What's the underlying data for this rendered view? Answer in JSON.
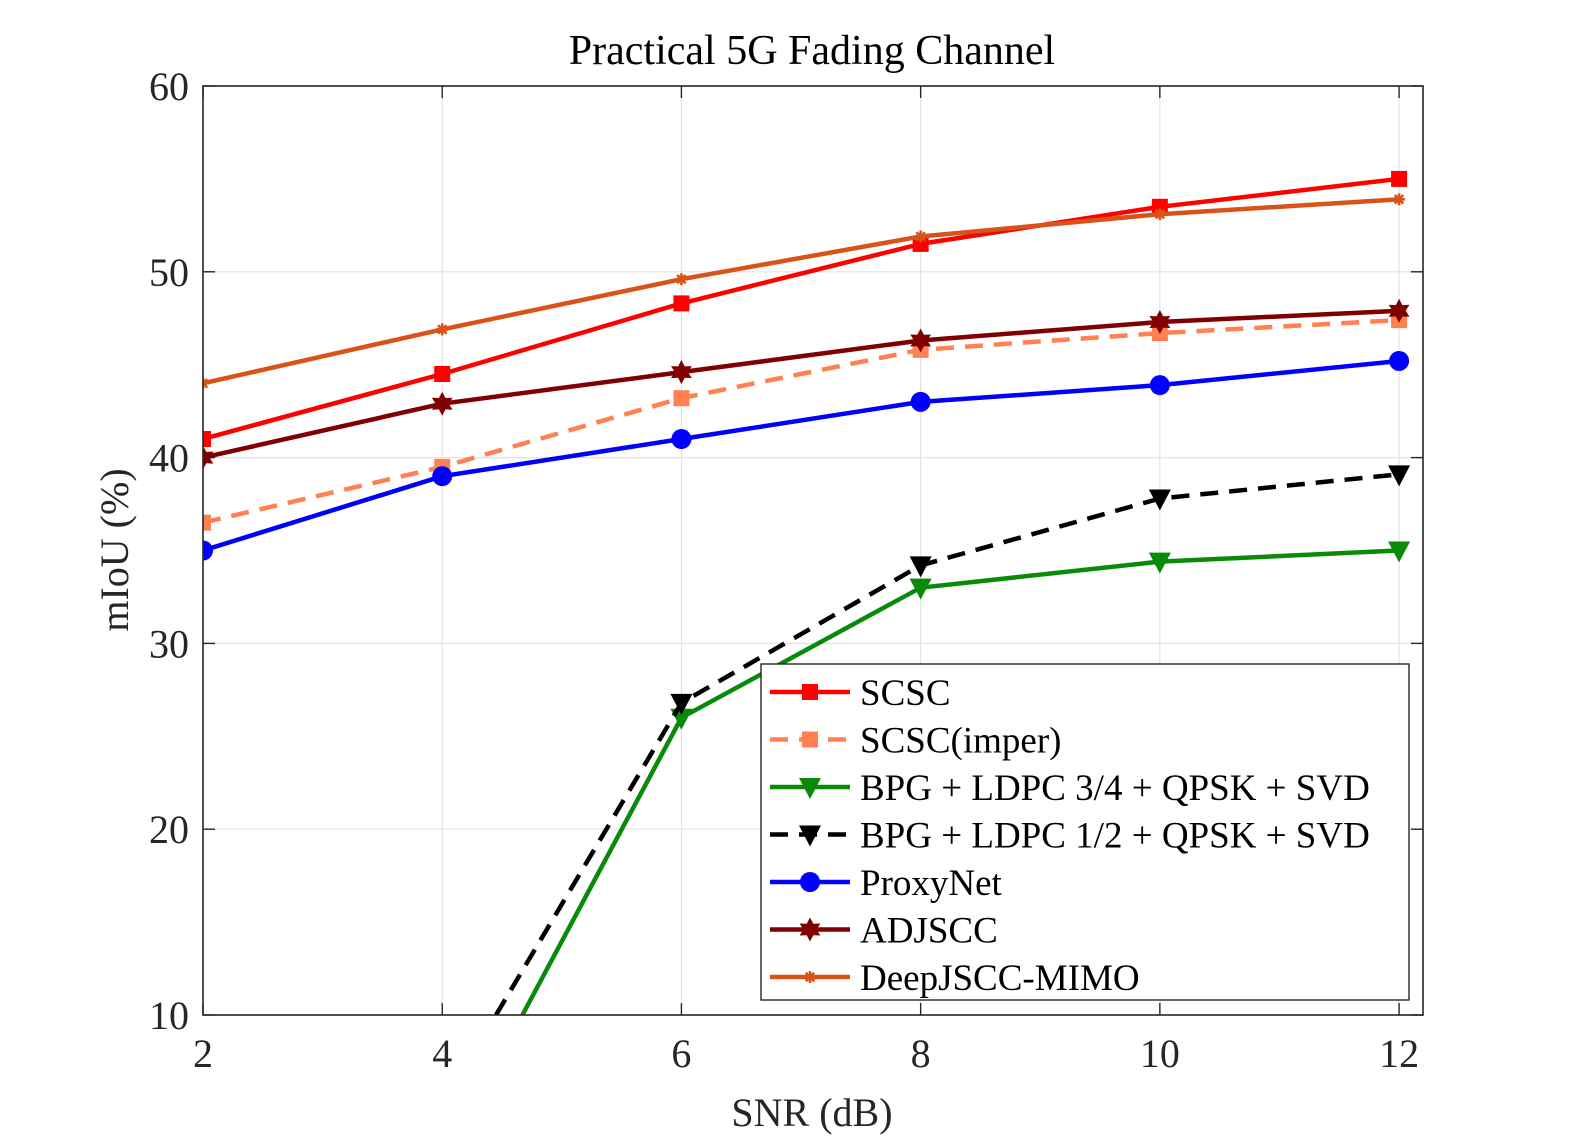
{
  "chart_data": {
    "type": "line",
    "title": "Practical 5G Fading Channel",
    "xlabel": "SNR (dB)",
    "ylabel": "mIoU (%)",
    "xlim": [
      2,
      12.2
    ],
    "ylim": [
      10,
      60
    ],
    "x_ticks": [
      2,
      4,
      6,
      8,
      10,
      12
    ],
    "y_ticks": [
      10,
      20,
      30,
      40,
      50,
      60
    ],
    "x_tick_labels": [
      "2",
      "4",
      "6",
      "8",
      "10",
      "12"
    ],
    "y_tick_labels": [
      "10",
      "20",
      "30",
      "40",
      "50",
      "60"
    ],
    "grid": true,
    "legend_position": "bottom-right",
    "series": [
      {
        "name": "SCSC",
        "color": "#ff0000",
        "dash": "solid",
        "marker": "square",
        "x": [
          2,
          4,
          6,
          8,
          10,
          12
        ],
        "y": [
          41.0,
          44.5,
          48.3,
          51.5,
          53.5,
          55.0
        ]
      },
      {
        "name": "SCSC(imper)",
        "color": "#ff8050",
        "dash": "dashed",
        "marker": "square",
        "x": [
          2,
          4,
          6,
          8,
          10,
          12
        ],
        "y": [
          36.5,
          39.5,
          43.2,
          45.8,
          46.7,
          47.4
        ]
      },
      {
        "name": "BPG + LDPC 3/4 + QPSK + SVD",
        "color": "#0a8a0a",
        "dash": "solid",
        "marker": "triangle-down",
        "x": [
          4.67,
          6,
          8,
          10,
          12
        ],
        "y": [
          10.0,
          26.0,
          33.0,
          34.4,
          35.0
        ]
      },
      {
        "name": "BPG + LDPC 1/2 + QPSK + SVD",
        "color": "#000000",
        "dash": "dashed",
        "marker": "triangle-down",
        "x": [
          4.45,
          6,
          8,
          10,
          12
        ],
        "y": [
          10.0,
          26.8,
          34.2,
          37.8,
          39.1
        ]
      },
      {
        "name": "ProxyNet",
        "color": "#0000ff",
        "dash": "solid",
        "marker": "circle",
        "x": [
          2,
          4,
          6,
          8,
          10,
          12
        ],
        "y": [
          35.0,
          39.0,
          41.0,
          43.0,
          43.9,
          45.2
        ]
      },
      {
        "name": "ADJSCC",
        "color": "#800000",
        "dash": "solid",
        "marker": "hexagram",
        "x": [
          2,
          4,
          6,
          8,
          10,
          12
        ],
        "y": [
          40.0,
          42.9,
          44.6,
          46.3,
          47.3,
          47.9
        ]
      },
      {
        "name": "DeepJSCC-MIMO",
        "color": "#d95319",
        "dash": "solid",
        "marker": "asterisk",
        "x": [
          2,
          4,
          6,
          8,
          10,
          12
        ],
        "y": [
          44.0,
          46.9,
          49.6,
          51.9,
          53.1,
          53.9
        ]
      }
    ]
  }
}
